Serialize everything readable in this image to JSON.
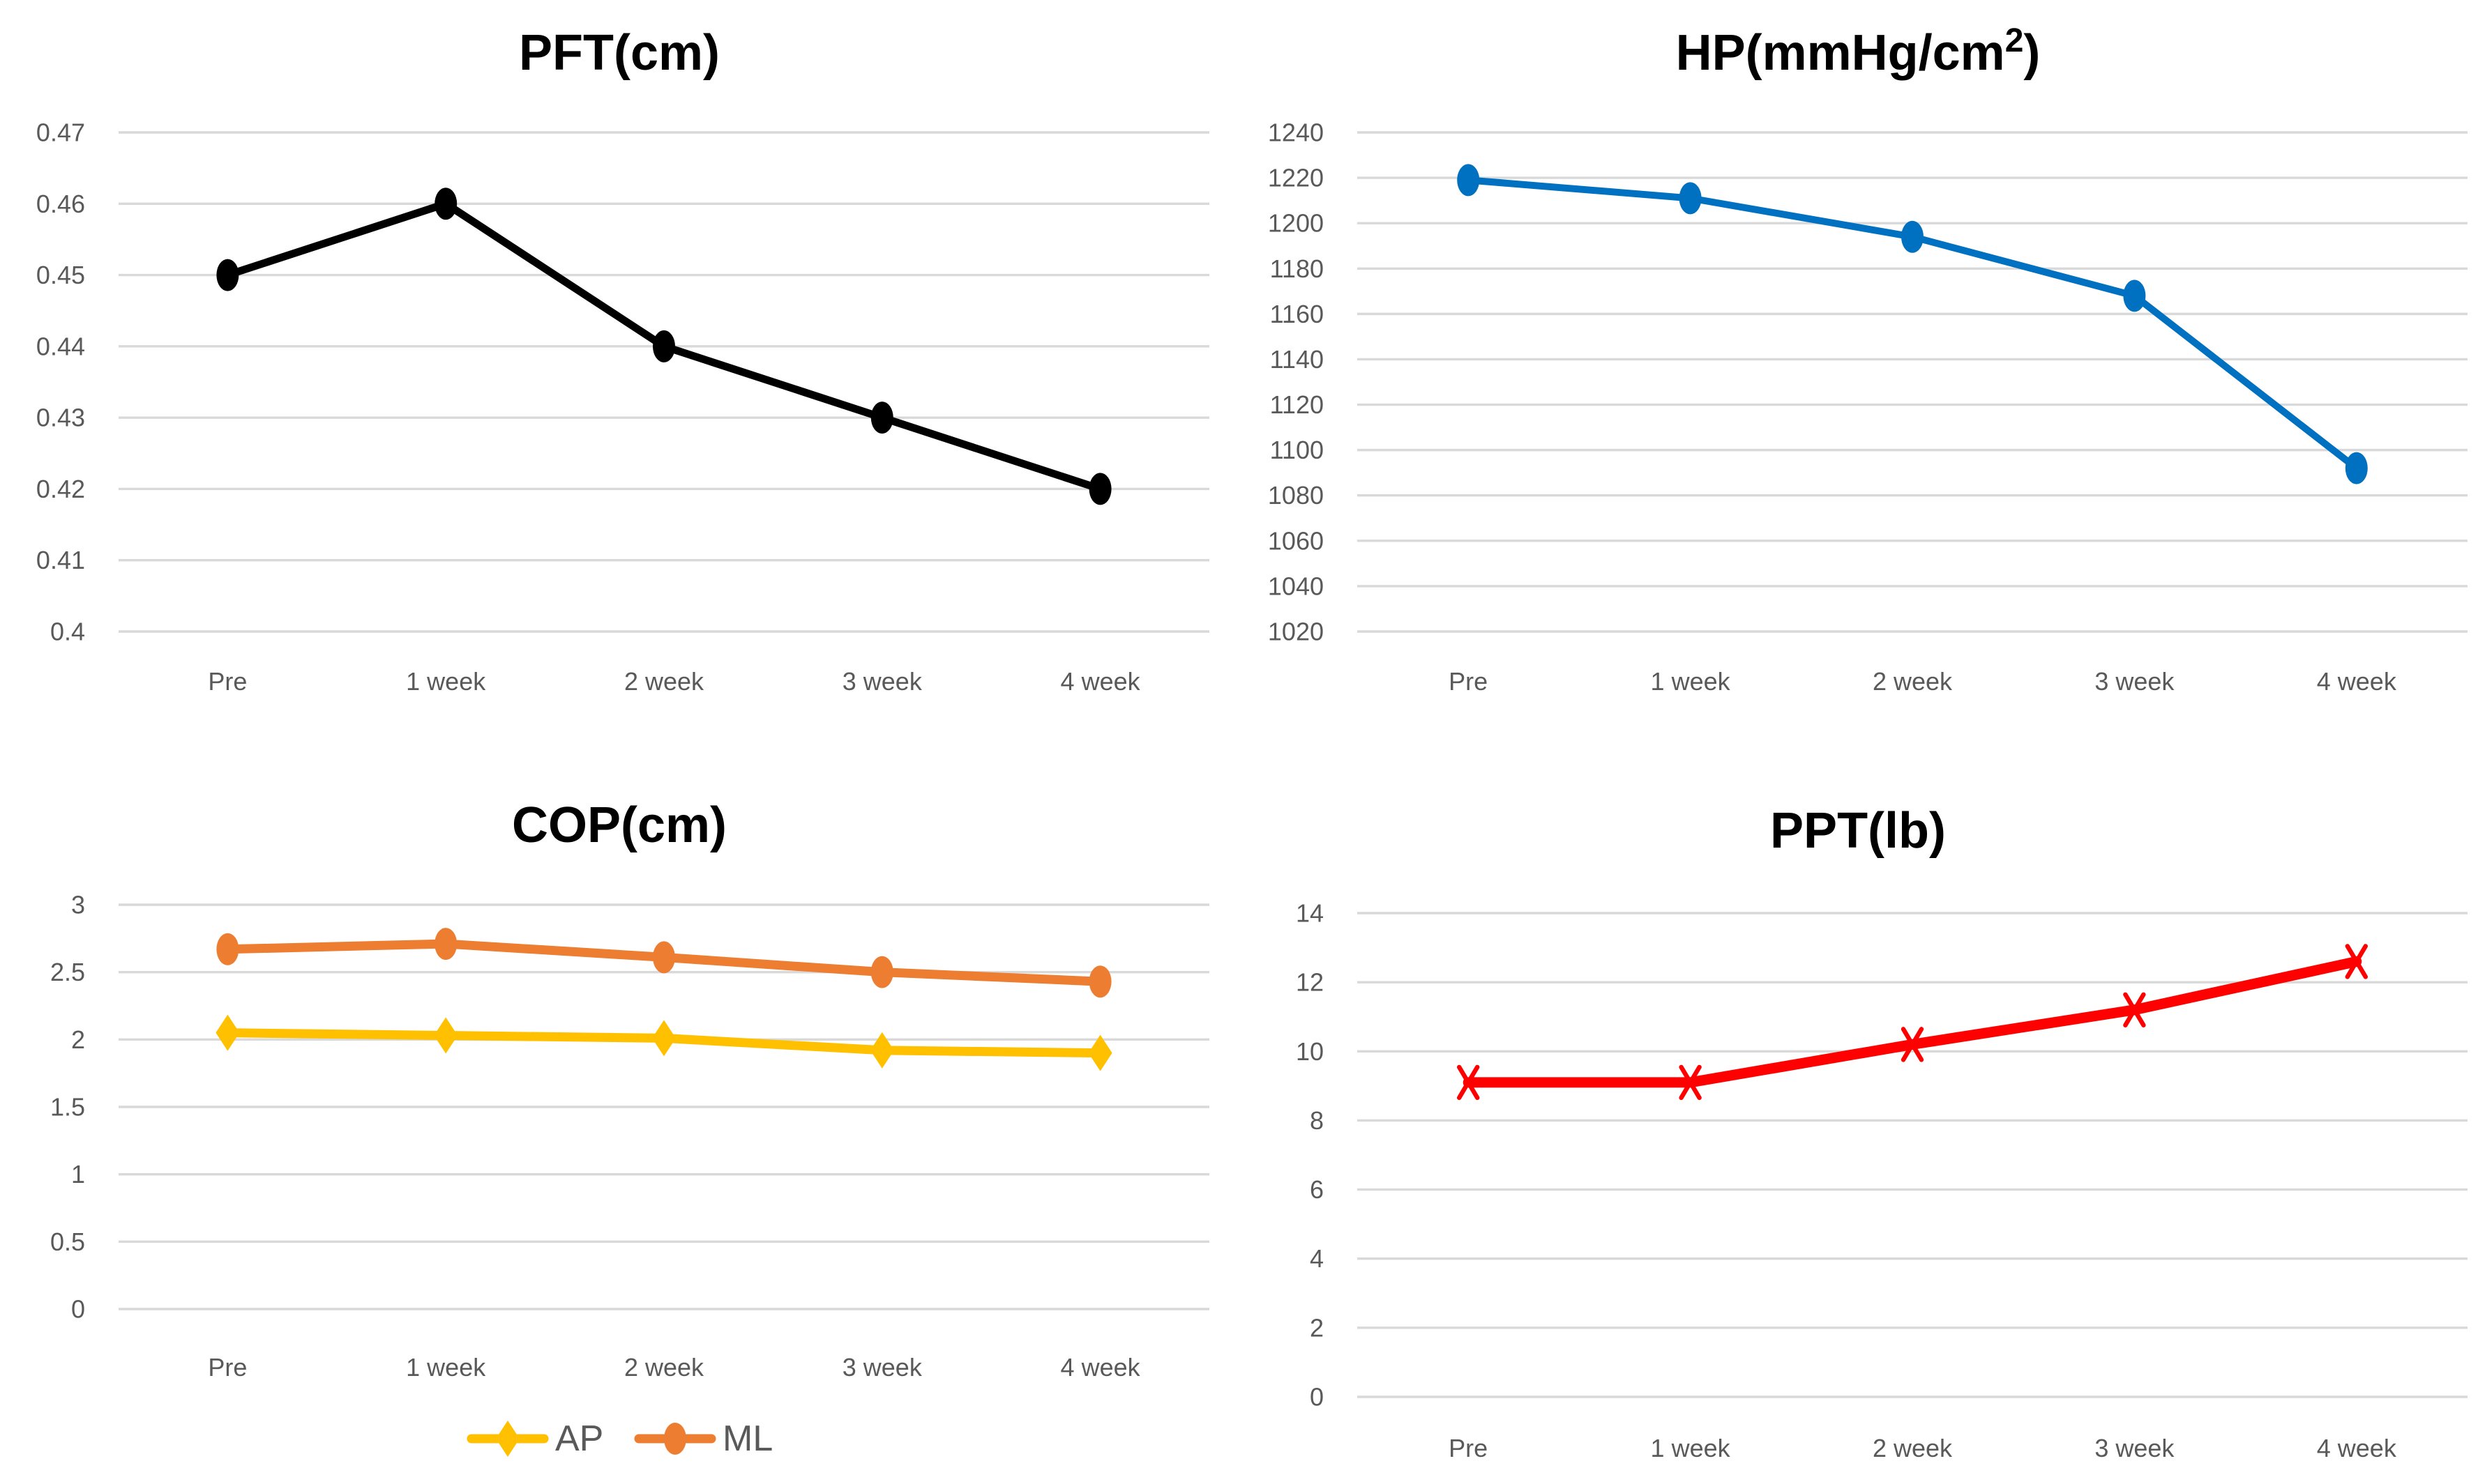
{
  "style": {
    "background": "#ffffff",
    "gridline_color": "#d9d9d9",
    "tick_label_color": "#595959",
    "title_color": "#000000",
    "legend_text_color": "#595959"
  },
  "chart_data": [
    {
      "type": "line",
      "title": "PFT(cm)",
      "categories": [
        "Pre",
        "1 week",
        "2 week",
        "3 week",
        "4 week"
      ],
      "series": [
        {
          "name": "PFT",
          "color": "#000000",
          "marker": "ellipse",
          "values": [
            0.45,
            0.46,
            0.44,
            0.43,
            0.42
          ]
        }
      ],
      "ylim": [
        0.4,
        0.47
      ],
      "ytick_values": [
        0.4,
        0.41,
        0.42,
        0.43,
        0.44,
        0.45,
        0.46,
        0.47
      ],
      "ytick_labels": [
        "0.4",
        "0.41",
        "0.42",
        "0.43",
        "0.44",
        "0.45",
        "0.46",
        "0.47"
      ],
      "grid": true,
      "legend": null
    },
    {
      "type": "line",
      "title": "HP(mmHg/cm²)",
      "categories": [
        "Pre",
        "1 week",
        "2 week",
        "3 week",
        "4 week"
      ],
      "series": [
        {
          "name": "HP",
          "color": "#0070c0",
          "marker": "ellipse",
          "values": [
            1219,
            1211,
            1194,
            1168,
            1092
          ]
        }
      ],
      "ylim": [
        1020,
        1240
      ],
      "ytick_values": [
        1020,
        1040,
        1060,
        1080,
        1100,
        1120,
        1140,
        1160,
        1180,
        1200,
        1220,
        1240
      ],
      "ytick_labels": [
        "1020",
        "1040",
        "1060",
        "1080",
        "1100",
        "1120",
        "1140",
        "1160",
        "1180",
        "1200",
        "1220",
        "1240"
      ],
      "grid": true,
      "legend": null
    },
    {
      "type": "line",
      "title": "COP(cm)",
      "categories": [
        "Pre",
        "1 week",
        "2 week",
        "3 week",
        "4 week"
      ],
      "series": [
        {
          "name": "AP",
          "color": "#ffc000",
          "marker": "diamond",
          "values": [
            2.05,
            2.03,
            2.01,
            1.92,
            1.9
          ]
        },
        {
          "name": "ML",
          "color": "#ed7d31",
          "marker": "ellipse",
          "values": [
            2.67,
            2.71,
            2.61,
            2.5,
            2.43
          ]
        }
      ],
      "ylim": [
        0,
        3
      ],
      "ytick_values": [
        0,
        0.5,
        1,
        1.5,
        2,
        2.5,
        3
      ],
      "ytick_labels": [
        "0",
        "0.5",
        "1",
        "1.5",
        "2",
        "2.5",
        "3"
      ],
      "grid": true,
      "legend": {
        "position": "bottom",
        "entries": [
          "AP",
          "ML"
        ]
      }
    },
    {
      "type": "line",
      "title": "PPT(lb)",
      "categories": [
        "Pre",
        "1 week",
        "2 week",
        "3 week",
        "4 week"
      ],
      "series": [
        {
          "name": "PPT",
          "color": "#ff0000",
          "marker": "x",
          "values": [
            9.1,
            9.1,
            10.2,
            11.2,
            12.6
          ]
        }
      ],
      "ylim": [
        0,
        14
      ],
      "ytick_values": [
        0,
        2,
        4,
        6,
        8,
        10,
        12,
        14
      ],
      "ytick_labels": [
        "0",
        "2",
        "4",
        "6",
        "8",
        "10",
        "12",
        "14"
      ],
      "grid": true,
      "legend": null
    }
  ]
}
